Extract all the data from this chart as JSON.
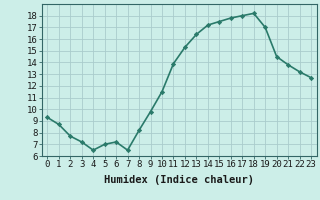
{
  "x": [
    0,
    1,
    2,
    3,
    4,
    5,
    6,
    7,
    8,
    9,
    10,
    11,
    12,
    13,
    14,
    15,
    16,
    17,
    18,
    19,
    20,
    21,
    22,
    23
  ],
  "y": [
    9.3,
    8.7,
    7.7,
    7.2,
    6.5,
    7.0,
    7.2,
    6.5,
    8.2,
    9.8,
    11.5,
    13.9,
    15.3,
    16.4,
    17.2,
    17.5,
    17.8,
    18.0,
    18.2,
    17.0,
    14.5,
    13.8,
    13.2,
    12.7
  ],
  "line_color": "#2a7a6a",
  "marker": "D",
  "marker_size": 2.2,
  "background_color": "#cceee8",
  "grid_color": "#aacccc",
  "xlabel": "Humidex (Indice chaleur)",
  "ylim": [
    6,
    19
  ],
  "xlim": [
    -0.5,
    23.5
  ],
  "yticks": [
    6,
    7,
    8,
    9,
    10,
    11,
    12,
    13,
    14,
    15,
    16,
    17,
    18
  ],
  "xticks": [
    0,
    1,
    2,
    3,
    4,
    5,
    6,
    7,
    8,
    9,
    10,
    11,
    12,
    13,
    14,
    15,
    16,
    17,
    18,
    19,
    20,
    21,
    22,
    23
  ],
  "xlabel_fontsize": 7.5,
  "tick_fontsize": 6.5,
  "line_width": 1.2
}
